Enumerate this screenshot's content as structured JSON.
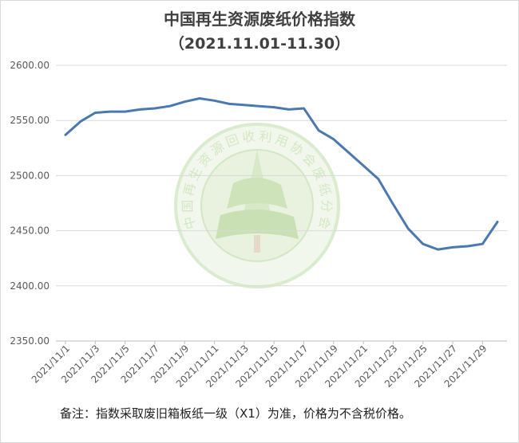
{
  "chart_data": {
    "type": "line",
    "title": "中国再生资源废纸价格指数",
    "subtitle": "（2021.11.01-11.30）",
    "note": "备注：指数采取废旧箱板纸一级（X1）为准，价格为不含税价格。",
    "watermark_text": "中国再生资源回收利用协会废纸分会",
    "line_color": "#4a78b0",
    "ylim": [
      2350,
      2600
    ],
    "yticks": [
      "2350.00",
      "2400.00",
      "2450.00",
      "2500.00",
      "2550.00",
      "2600.00"
    ],
    "grid": true,
    "x": [
      "2021/11/1",
      "2021/11/2",
      "2021/11/3",
      "2021/11/4",
      "2021/11/5",
      "2021/11/6",
      "2021/11/7",
      "2021/11/8",
      "2021/11/9",
      "2021/11/10",
      "2021/11/11",
      "2021/11/12",
      "2021/11/13",
      "2021/11/14",
      "2021/11/15",
      "2021/11/16",
      "2021/11/17",
      "2021/11/18",
      "2021/11/19",
      "2021/11/20",
      "2021/11/21",
      "2021/11/22",
      "2021/11/23",
      "2021/11/24",
      "2021/11/25",
      "2021/11/26",
      "2021/11/27",
      "2021/11/28",
      "2021/11/29",
      "2021/11/30"
    ],
    "xtick_labels": [
      "2021/11/1",
      "2021/11/3",
      "2021/11/5",
      "2021/11/7",
      "2021/11/9",
      "2021/11/11",
      "2021/11/13",
      "2021/11/15",
      "2021/11/17",
      "2021/11/19",
      "2021/11/21",
      "2021/11/23",
      "2021/11/25",
      "2021/11/27",
      "2021/11/29"
    ],
    "series": [
      {
        "values": [
          2537,
          2549,
          2557,
          2558,
          2558,
          2560,
          2561,
          2563,
          2567,
          2570,
          2568,
          2565,
          2564,
          2563,
          2562,
          2560,
          2561,
          2541,
          2533,
          2521,
          2509,
          2497,
          2474,
          2452,
          2438,
          2433,
          2435,
          2436,
          2438,
          2458
        ]
      }
    ]
  }
}
